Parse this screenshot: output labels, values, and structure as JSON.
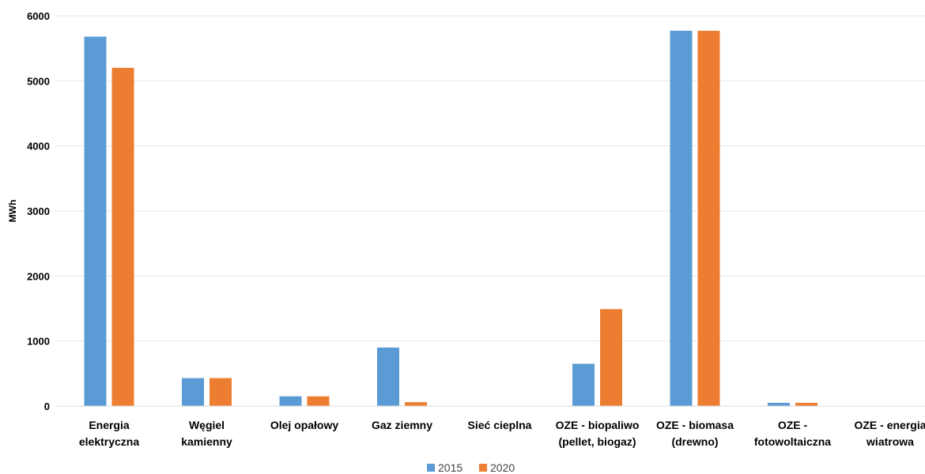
{
  "chart_data": {
    "type": "bar",
    "title": "",
    "xlabel": "",
    "ylabel": "MWh",
    "ylim": [
      0,
      6000
    ],
    "yticks": [
      "0",
      "1000",
      "2000",
      "3000",
      "4000",
      "5000",
      "6000"
    ],
    "grid": true,
    "legend_position": "bottom",
    "categories": [
      [
        "Energia",
        "elektryczna"
      ],
      [
        "Węgiel",
        "kamienny"
      ],
      [
        "Olej opałowy"
      ],
      [
        "Gaz ziemny"
      ],
      [
        "Sieć cieplna"
      ],
      [
        "OZE - biopaliwo",
        "(pellet, biogaz)"
      ],
      [
        "OZE - biomasa",
        "(drewno)"
      ],
      [
        "OZE -",
        "fotowoltaiczna"
      ],
      [
        "OZE - energia",
        "wiatrowa"
      ]
    ],
    "series": [
      {
        "name": "2015",
        "color": "#5B9BD5",
        "values": [
          5680,
          430,
          150,
          900,
          0,
          650,
          5770,
          50,
          0
        ]
      },
      {
        "name": "2020",
        "color": "#ED7D31",
        "values": [
          5200,
          430,
          150,
          60,
          0,
          1490,
          5770,
          50,
          0
        ]
      }
    ]
  }
}
